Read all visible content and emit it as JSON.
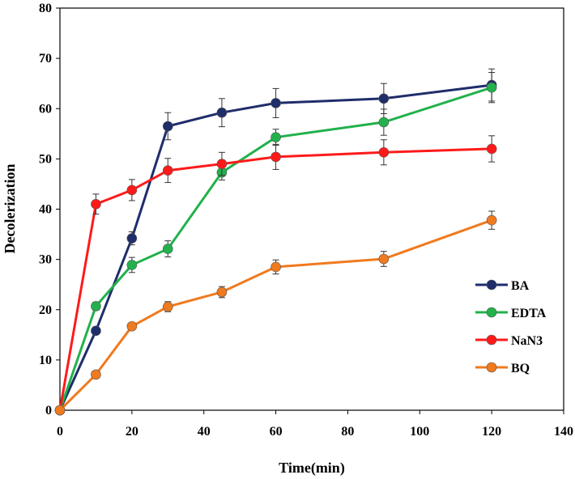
{
  "chart_data": {
    "type": "line",
    "title": "",
    "xlabel": "Time(min)",
    "ylabel": "Decolerization",
    "xlim": [
      0,
      140
    ],
    "ylim": [
      0,
      80
    ],
    "xticks": [
      0,
      20,
      40,
      60,
      80,
      100,
      120,
      140
    ],
    "yticks": [
      0,
      10,
      20,
      30,
      40,
      50,
      60,
      70,
      80
    ],
    "grid": false,
    "legend_position": "right-lower",
    "series": [
      {
        "name": "BA",
        "color": "#1f2d6b",
        "x": [
          0,
          10,
          20,
          30,
          45,
          60,
          90,
          120
        ],
        "values": [
          0,
          15.8,
          34.2,
          56.5,
          59.2,
          61.1,
          62.0,
          64.7
        ],
        "errors": [
          0,
          0.6,
          1.3,
          2.7,
          2.8,
          2.9,
          3.0,
          3.2
        ]
      },
      {
        "name": "EDTA",
        "color": "#22b14c",
        "x": [
          0,
          10,
          20,
          30,
          45,
          60,
          90,
          120
        ],
        "values": [
          0,
          20.7,
          28.9,
          32.1,
          47.3,
          54.3,
          57.3,
          64.2
        ],
        "errors": [
          0,
          0.8,
          1.5,
          1.6,
          1.5,
          1.6,
          2.6,
          3.0
        ]
      },
      {
        "name": "NaN3",
        "color": "#ff1a1a",
        "x": [
          0,
          10,
          20,
          30,
          45,
          60,
          90,
          120
        ],
        "values": [
          0,
          41.0,
          43.8,
          47.7,
          49.0,
          50.4,
          51.3,
          52.0
        ],
        "errors": [
          0,
          2.0,
          2.1,
          2.4,
          2.3,
          2.5,
          2.5,
          2.6
        ]
      },
      {
        "name": "BQ",
        "color": "#f07a1e",
        "x": [
          0,
          10,
          20,
          30,
          45,
          60,
          90,
          120
        ],
        "values": [
          0,
          7.1,
          16.7,
          20.6,
          23.5,
          28.5,
          30.1,
          37.8
        ],
        "errors": [
          0,
          0.5,
          0.7,
          1.0,
          1.1,
          1.4,
          1.5,
          1.8
        ]
      }
    ]
  }
}
